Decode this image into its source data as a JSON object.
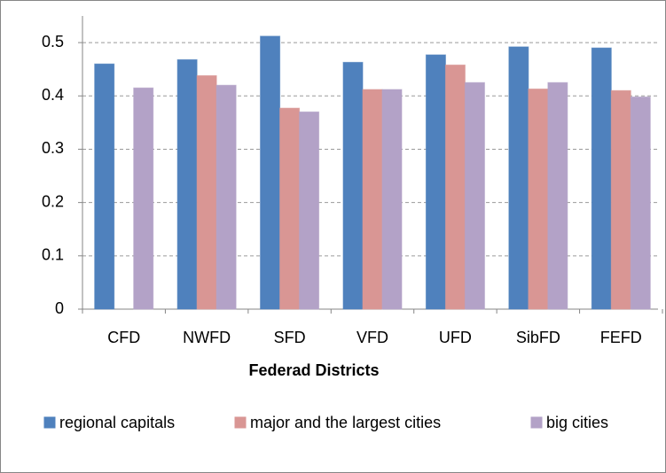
{
  "chart_data": {
    "type": "bar",
    "xlabel": "Federad Districts",
    "categories": [
      "CFD",
      "NWFD",
      "SFD",
      "VFD",
      "UFD",
      "SibFD",
      "FEFD"
    ],
    "series": [
      {
        "name": "regional capitals",
        "color": "#4f81bd",
        "values": [
          0.46,
          0.468,
          0.512,
          0.463,
          0.477,
          0.492,
          0.49
        ]
      },
      {
        "name": "major and the largest cities",
        "color": "#d99694",
        "values": [
          null,
          0.438,
          0.377,
          0.412,
          0.458,
          0.413,
          0.41
        ]
      },
      {
        "name": "big cities",
        "color": "#b3a2c7",
        "values": [
          0.415,
          0.42,
          0.37,
          0.412,
          0.425,
          0.425,
          0.398
        ]
      }
    ],
    "ylim": [
      0,
      0.55
    ],
    "yticks": [
      0,
      0.1,
      0.2,
      0.3,
      0.4,
      0.5
    ],
    "grid": true,
    "legend": "bottom"
  }
}
